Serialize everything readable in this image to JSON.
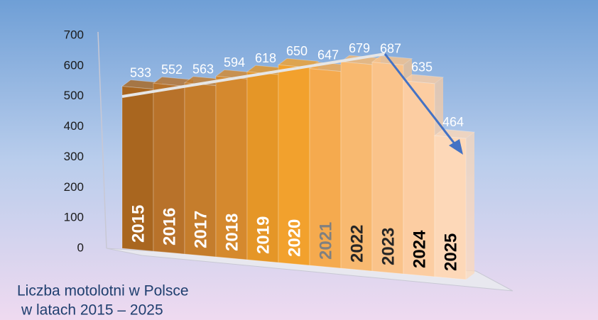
{
  "chart_data": {
    "type": "bar3d",
    "title": [
      "Liczba motolotni w Polsce",
      "w latach 2015 – 2025"
    ],
    "categories": [
      "2015",
      "2016",
      "2017",
      "2018",
      "2019",
      "2020",
      "2021",
      "2022",
      "2023",
      "2024",
      "2025"
    ],
    "values": [
      533,
      552,
      563,
      594,
      618,
      650,
      647,
      679,
      687,
      635,
      464
    ],
    "colors": [
      "#a9661f",
      "#b8722a",
      "#c57d2c",
      "#d5892e",
      "#e59627",
      "#f2a12d",
      "#f5aa4e",
      "#f8b970",
      "#fac38a",
      "#fccda2",
      "#fdd8b8"
    ],
    "category_label_colors": [
      "#ffffff",
      "#ffffff",
      "#ffffff",
      "#ffffff",
      "#ffffff",
      "#ffffff",
      "#808080",
      "#262626",
      "#262626",
      "#000000",
      "#000000"
    ],
    "value_label_color": "#ffffff",
    "ylim": [
      0,
      700
    ],
    "yticks": [
      0,
      100,
      200,
      300,
      400,
      500,
      600,
      700
    ]
  }
}
